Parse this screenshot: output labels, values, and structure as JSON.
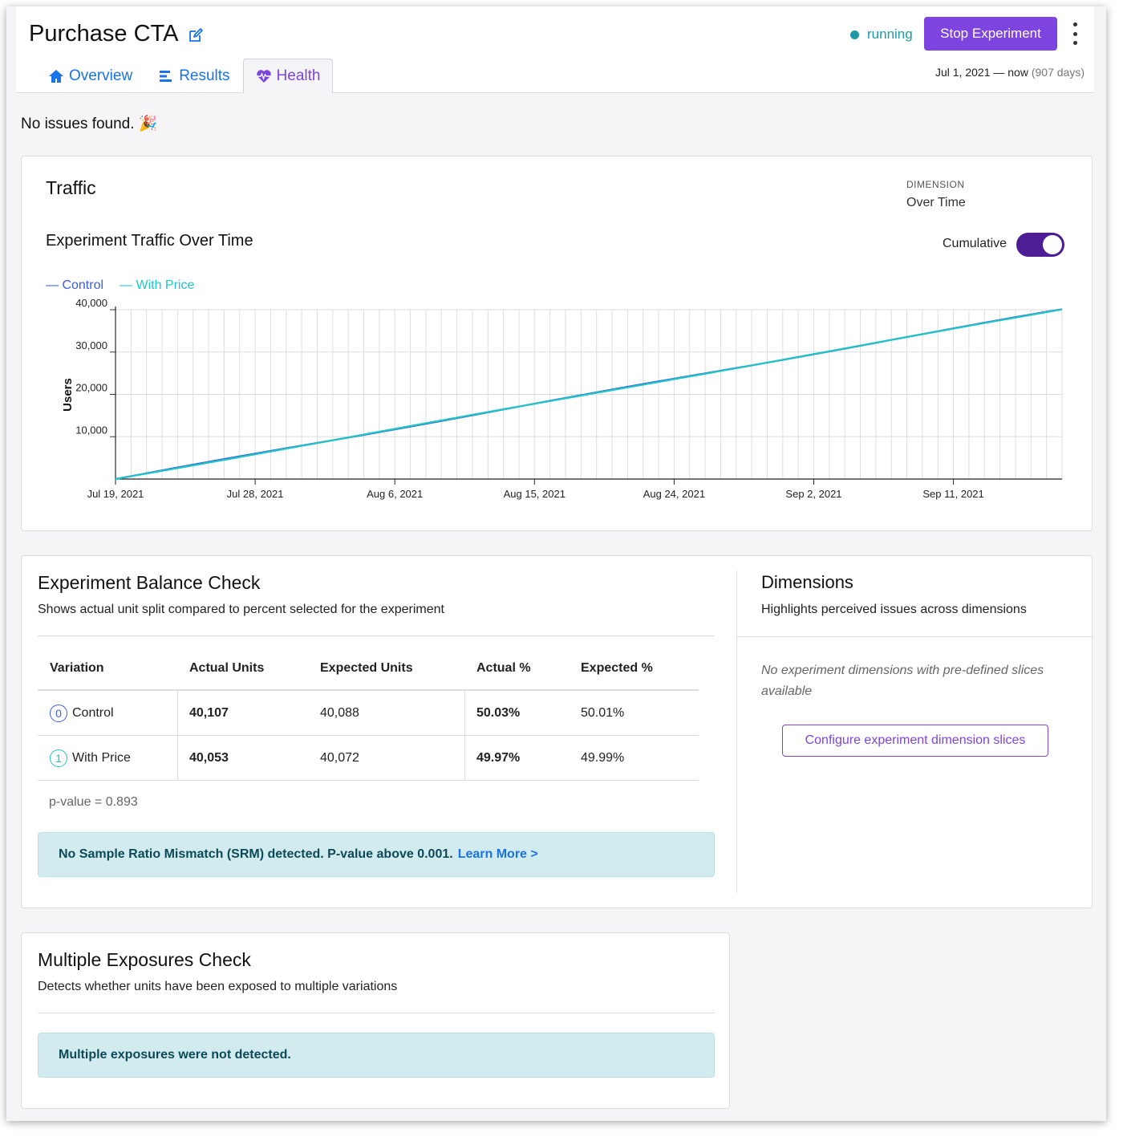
{
  "header": {
    "title": "Purchase CTA",
    "status": "running",
    "stop_label": "Stop Experiment",
    "date_range": "Jul 1, 2021 — now",
    "duration": "(907 days)",
    "colors": {
      "accent": "#7d44e0",
      "running": "#1e9aa6",
      "link": "#1a73e8"
    }
  },
  "tabs": [
    {
      "label": "Overview",
      "icon": "home-icon"
    },
    {
      "label": "Results",
      "icon": "bar-chart-icon"
    },
    {
      "label": "Health",
      "icon": "heartbeat-icon",
      "active": true
    }
  ],
  "issues_text": "No issues found. 🎉",
  "traffic": {
    "title": "Traffic",
    "dimension_label": "DIMENSION",
    "dimension_value": "Over Time",
    "chart_title": "Experiment Traffic Over Time",
    "cumulative_label": "Cumulative",
    "cumulative_on": true
  },
  "chart_data": {
    "type": "line",
    "title": "Experiment Traffic Over Time",
    "xlabel": "",
    "ylabel": "Users",
    "x_start": "2021-07-19",
    "x_end": "2021-09-18",
    "x_ticks": [
      "Jul 19, 2021",
      "Jul 28, 2021",
      "Aug 6, 2021",
      "Aug 15, 2021",
      "Aug 24, 2021",
      "Sep 2, 2021",
      "Sep 11, 2021"
    ],
    "y_ticks": [
      "10,000",
      "20,000",
      "30,000",
      "40,000"
    ],
    "ylim": [
      0,
      40000
    ],
    "grid": true,
    "legend_position": "top-left",
    "series": [
      {
        "name": "Control",
        "color": "#3b5fe0",
        "start": 0,
        "end": 40107
      },
      {
        "name": "With Price",
        "color": "#20c4c4",
        "start": 0,
        "end": 40053
      }
    ]
  },
  "balance": {
    "title": "Experiment Balance Check",
    "subtitle": "Shows actual unit split compared to percent selected for the experiment",
    "headers": [
      "Variation",
      "Actual Units",
      "Expected Units",
      "Actual %",
      "Expected %"
    ],
    "rows": [
      {
        "index": "0",
        "variation": "Control",
        "actual_units": "40,107",
        "expected_units": "40,088",
        "actual_pct": "50.03%",
        "expected_pct": "50.01%"
      },
      {
        "index": "1",
        "variation": "With Price",
        "actual_units": "40,053",
        "expected_units": "40,072",
        "actual_pct": "49.97%",
        "expected_pct": "49.99%"
      }
    ],
    "pvalue": "p-value = 0.893",
    "alert": "No Sample Ratio Mismatch (SRM) detected. P-value above 0.001.",
    "learn_more": "Learn More >"
  },
  "dimensions": {
    "title": "Dimensions",
    "subtitle": "Highlights perceived issues across dimensions",
    "empty_text": "No experiment dimensions with pre-defined slices available",
    "button_label": "Configure experiment dimension slices"
  },
  "exposures": {
    "title": "Multiple Exposures Check",
    "subtitle": "Detects whether units have been exposed to multiple variations",
    "alert": "Multiple exposures were not detected."
  }
}
